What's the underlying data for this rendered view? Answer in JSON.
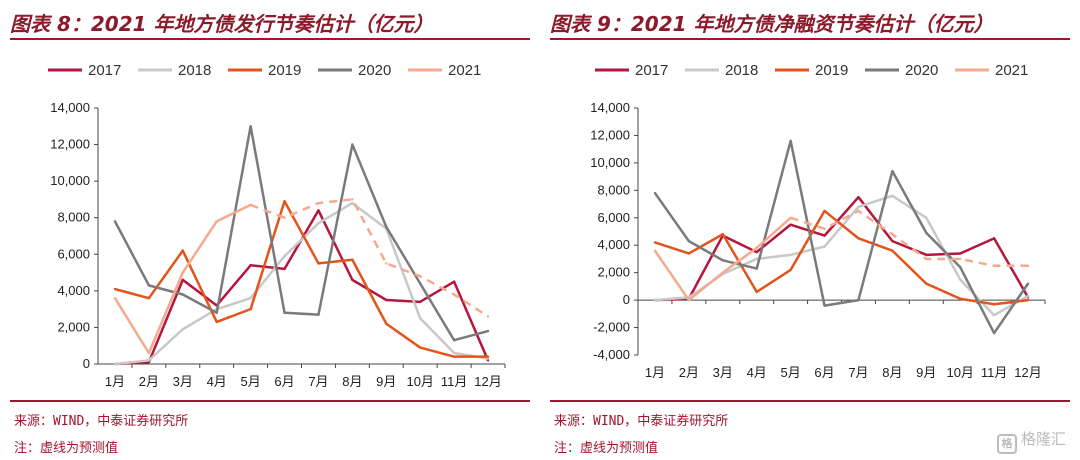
{
  "watermark": {
    "icon": "格",
    "text": "格隆汇"
  },
  "panels": [
    {
      "title": "图表 8：2021 年地方债发行节奏估计（亿元）",
      "source": "来源：WIND，中泰证券研究所",
      "remark": "注：虚线为预测值"
    },
    {
      "title": "图表 9：2021 年地方债净融资节奏估计（亿元）",
      "source": "来源：WIND，中泰证券研究所",
      "remark": "注：虚线为预测值"
    }
  ],
  "chart_data": [
    {
      "type": "line",
      "title": "2021 年地方债发行节奏估计（亿元）",
      "categories": [
        "1月",
        "2月",
        "3月",
        "4月",
        "5月",
        "6月",
        "7月",
        "8月",
        "9月",
        "10月",
        "11月",
        "12月"
      ],
      "ylim": [
        0,
        14000
      ],
      "yticks": [
        0,
        2000,
        4000,
        6000,
        8000,
        10000,
        12000,
        14000
      ],
      "ytick_labels": [
        "0",
        "2,000",
        "4,000",
        "6,000",
        "8,000",
        "10,000",
        "12,000",
        "14,000"
      ],
      "grid": false,
      "legend_position": "top",
      "series": [
        {
          "name": "2017",
          "color": "#b5163d",
          "dashed_from": null,
          "values": [
            0,
            100,
            4600,
            3200,
            5400,
            5200,
            8400,
            4600,
            3500,
            3400,
            4500,
            200
          ]
        },
        {
          "name": "2018",
          "color": "#c8c8c8",
          "dashed_from": null,
          "values": [
            0,
            200,
            1900,
            3000,
            3600,
            5900,
            7700,
            8800,
            7400,
            2500,
            600,
            300
          ]
        },
        {
          "name": "2019",
          "color": "#e2541b",
          "dashed_from": null,
          "values": [
            4100,
            3600,
            6200,
            2300,
            3000,
            8900,
            5500,
            5700,
            2200,
            900,
            400,
            400
          ]
        },
        {
          "name": "2020",
          "color": "#7a7a7a",
          "dashed_from": null,
          "values": [
            7800,
            4300,
            3800,
            2800,
            13000,
            2800,
            2700,
            12000,
            7500,
            4400,
            1300,
            1800
          ]
        },
        {
          "name": "2021",
          "color": "#f5a98f",
          "dashed_from": 4,
          "values": [
            3600,
            600,
            5000,
            7800,
            8700,
            8000,
            8800,
            9000,
            5500,
            4800,
            3800,
            2600
          ]
        }
      ]
    },
    {
      "type": "line",
      "title": "2021 年地方债净融资节奏估计（亿元）",
      "categories": [
        "1月",
        "2月",
        "3月",
        "4月",
        "5月",
        "6月",
        "7月",
        "8月",
        "9月",
        "10月",
        "11月",
        "12月"
      ],
      "ylim": [
        -4000,
        14000
      ],
      "yticks": [
        -4000,
        -2000,
        0,
        2000,
        4000,
        6000,
        8000,
        10000,
        12000,
        14000
      ],
      "ytick_labels": [
        "-4,000",
        "-2,000",
        "0",
        "2,000",
        "4,000",
        "6,000",
        "8,000",
        "10,000",
        "12,000",
        "14,000"
      ],
      "grid": false,
      "legend_position": "top",
      "series": [
        {
          "name": "2017",
          "color": "#b5163d",
          "dashed_from": null,
          "values": [
            0,
            100,
            4700,
            3500,
            5500,
            4700,
            7500,
            4300,
            3300,
            3400,
            4500,
            200
          ]
        },
        {
          "name": "2018",
          "color": "#c8c8c8",
          "dashed_from": null,
          "values": [
            0,
            200,
            1900,
            3000,
            3300,
            3900,
            6800,
            7600,
            6000,
            1500,
            -1100,
            300
          ]
        },
        {
          "name": "2019",
          "color": "#e2541b",
          "dashed_from": null,
          "values": [
            4200,
            3400,
            4800,
            600,
            2200,
            6500,
            4500,
            3600,
            1200,
            100,
            -300,
            0
          ]
        },
        {
          "name": "2020",
          "color": "#7a7a7a",
          "dashed_from": null,
          "values": [
            7800,
            4300,
            2900,
            2300,
            11600,
            -400,
            0,
            9400,
            4900,
            2400,
            -2400,
            1200
          ]
        },
        {
          "name": "2021",
          "color": "#f5a98f",
          "dashed_from": 4,
          "values": [
            3600,
            0,
            2000,
            3800,
            6000,
            5200,
            6500,
            4800,
            3000,
            3000,
            2500,
            2500
          ]
        }
      ]
    }
  ]
}
